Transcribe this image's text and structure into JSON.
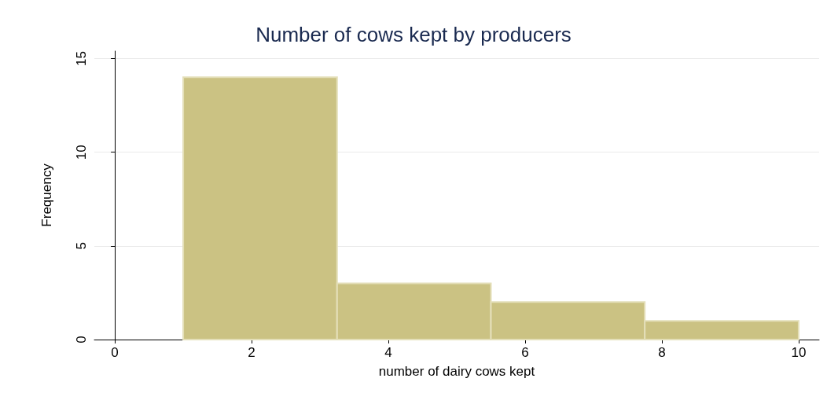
{
  "chart_data": {
    "type": "histogram",
    "title": "Number of cows kept by producers",
    "xlabel": "number of dairy cows kept",
    "ylabel": "Frequency",
    "bins": [
      1,
      3.25,
      5.5,
      7.75,
      10
    ],
    "values": [
      14,
      3,
      2,
      1
    ],
    "color": "#cbc283",
    "xlim": [
      -0.3,
      10.3
    ],
    "xticks": [
      0,
      2,
      4,
      6,
      8,
      10
    ],
    "ylim": [
      0,
      15.4
    ],
    "yticks": [
      0,
      5,
      10,
      15
    ],
    "grid": "y"
  }
}
